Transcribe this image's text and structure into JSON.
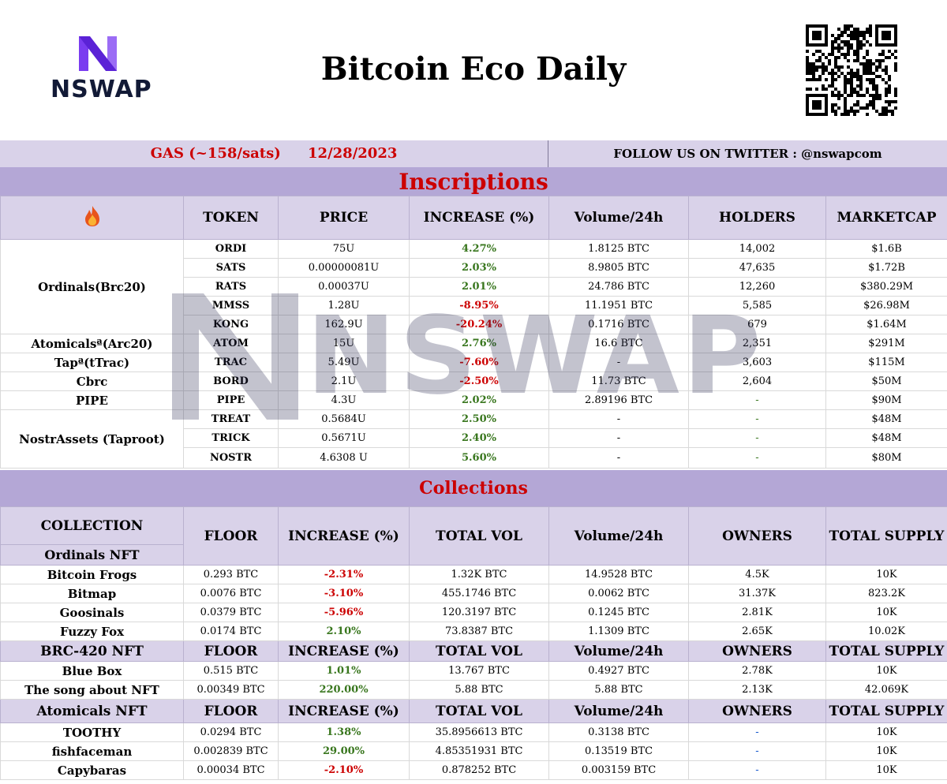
{
  "header": {
    "logo_text": "NSWAP",
    "title": "Bitcoin Eco Daily"
  },
  "gas_bar": {
    "gas": "GAS  (~158/sats)",
    "date": "12/28/2023",
    "follow": "FOLLOW US ON TWITTER : @nswapcom"
  },
  "inscriptions": {
    "title": "Inscriptions",
    "icon": "fire-icon",
    "headers": [
      "TOKEN",
      "PRICE",
      "INCREASE  (%)",
      "Volume/24h",
      "HOLDERS",
      "MARKETCAP"
    ],
    "groups": [
      {
        "name": "Ordinals(Brc20)",
        "rows": [
          {
            "token": "ORDI",
            "price": "75U",
            "increase": "4.27%",
            "dir": "up",
            "volume": "1.8125 BTC",
            "holders": "14,002",
            "marketcap": "$1.6B"
          },
          {
            "token": "SATS",
            "price": "0.00000081U",
            "increase": "2.03%",
            "dir": "up",
            "volume": "8.9805 BTC",
            "holders": "47,635",
            "marketcap": "$1.72B"
          },
          {
            "token": "RATS",
            "price": "0.00037U",
            "increase": "2.01%",
            "dir": "up",
            "volume": "24.786 BTC",
            "holders": "12,260",
            "marketcap": "$380.29M"
          },
          {
            "token": "MMSS",
            "price": "1.28U",
            "increase": "-8.95%",
            "dir": "down",
            "volume": "11.1951 BTC",
            "holders": "5,585",
            "marketcap": "$26.98M"
          },
          {
            "token": "KONG",
            "price": "162.9U",
            "increase": "-20.24%",
            "dir": "down",
            "volume": "0.1716 BTC",
            "holders": "679",
            "marketcap": "$1.64M"
          }
        ]
      },
      {
        "name": "Atomicalsª(Arc20)",
        "rows": [
          {
            "token": "ATOM",
            "price": "15U",
            "increase": "2.76%",
            "dir": "up",
            "volume": "16.6 BTC",
            "holders": "2,351",
            "marketcap": "$291M"
          }
        ]
      },
      {
        "name": "Tapª(tTrac)",
        "rows": [
          {
            "token": "TRAC",
            "price": "5.49U",
            "increase": "-7.60%",
            "dir": "down",
            "volume": "-",
            "holders": "3,603",
            "marketcap": "$115M"
          }
        ]
      },
      {
        "name": "Cbrc",
        "rows": [
          {
            "token": "BORD",
            "price": "2.1U",
            "increase": "-2.50%",
            "dir": "down",
            "volume": "11.73 BTC",
            "holders": "2,604",
            "marketcap": "$50M"
          }
        ]
      },
      {
        "name": "PIPE",
        "rows": [
          {
            "token": "PIPE",
            "price": "4.3U",
            "increase": "2.02%",
            "dir": "up",
            "volume": "2.89196 BTC",
            "holders": "-",
            "marketcap": "$90M"
          }
        ]
      },
      {
        "name": "NostrAssets (Taproot)",
        "rows": [
          {
            "token": "TREAT",
            "price": "0.5684U",
            "increase": "2.50%",
            "dir": "up",
            "volume": "-",
            "holders": "-",
            "marketcap": "$48M"
          },
          {
            "token": "TRICK",
            "price": "0.5671U",
            "increase": "2.40%",
            "dir": "up",
            "volume": "-",
            "holders": "-",
            "marketcap": "$48M"
          },
          {
            "token": "NOSTR",
            "price": "4.6308 U",
            "increase": "5.60%",
            "dir": "up",
            "volume": "-",
            "holders": "-",
            "marketcap": "$80M"
          }
        ]
      }
    ]
  },
  "collections": {
    "title": "Collections",
    "collection_label": "COLLECTION",
    "headers": [
      "FLOOR",
      "INCREASE  (%)",
      "TOTAL VOL",
      "Volume/24h",
      "OWNERS",
      "TOTAL SUPPLY"
    ],
    "groups": [
      {
        "name": "Ordinals NFT",
        "rows": [
          {
            "name": "Bitcoin Frogs",
            "floor": "0.293 BTC",
            "increase": "-2.31%",
            "dir": "down",
            "total_vol": "1.32K BTC",
            "volume": "14.9528 BTC",
            "owners": "4.5K",
            "supply": "10K"
          },
          {
            "name": "Bitmap",
            "floor": "0.0076 BTC",
            "increase": "-3.10%",
            "dir": "down",
            "total_vol": "455.1746 BTC",
            "volume": "0.0062 BTC",
            "owners": "31.37K",
            "supply": "823.2K"
          },
          {
            "name": "Goosinals",
            "floor": "0.0379 BTC",
            "increase": "-5.96%",
            "dir": "down",
            "total_vol": "120.3197 BTC",
            "volume": "0.1245 BTC",
            "owners": "2.81K",
            "supply": "10K"
          },
          {
            "name": "Fuzzy Fox",
            "floor": "0.0174 BTC",
            "increase": "2.10%",
            "dir": "up",
            "total_vol": "73.8387 BTC",
            "volume": "1.1309 BTC",
            "owners": "2.65K",
            "supply": "10.02K"
          }
        ]
      },
      {
        "name": "BRC-420 NFT",
        "rows": [
          {
            "name": "Blue Box",
            "floor": "0.515 BTC",
            "increase": "1.01%",
            "dir": "up",
            "total_vol": "13.767 BTC",
            "volume": "0.4927 BTC",
            "owners": "2.78K",
            "supply": "10K"
          },
          {
            "name": "The song about NFT",
            "floor": "0.00349 BTC",
            "increase": "220.00%",
            "dir": "up",
            "total_vol": "5.88 BTC",
            "volume": "5.88 BTC",
            "owners": "2.13K",
            "supply": "42.069K"
          }
        ]
      },
      {
        "name": "Atomicals NFT",
        "rows": [
          {
            "name": "TOOTHY",
            "floor": "0.0294 BTC",
            "increase": "1.38%",
            "dir": "up",
            "total_vol": "35.8956613 BTC",
            "volume": "0.3138 BTC",
            "owners": "-",
            "supply": "10K"
          },
          {
            "name": "fishfaceman",
            "floor": "0.002839 BTC",
            "increase": "29.00%",
            "dir": "up",
            "total_vol": "4.85351931 BTC",
            "volume": "0.13519 BTC",
            "owners": "-",
            "supply": "10K"
          },
          {
            "name": "Capybaras",
            "floor": "0.00034 BTC",
            "increase": "-2.10%",
            "dir": "down",
            "total_vol": "0.878252 BTC",
            "volume": "0.003159 BTC",
            "owners": "-",
            "supply": "10K"
          }
        ]
      }
    ]
  }
}
